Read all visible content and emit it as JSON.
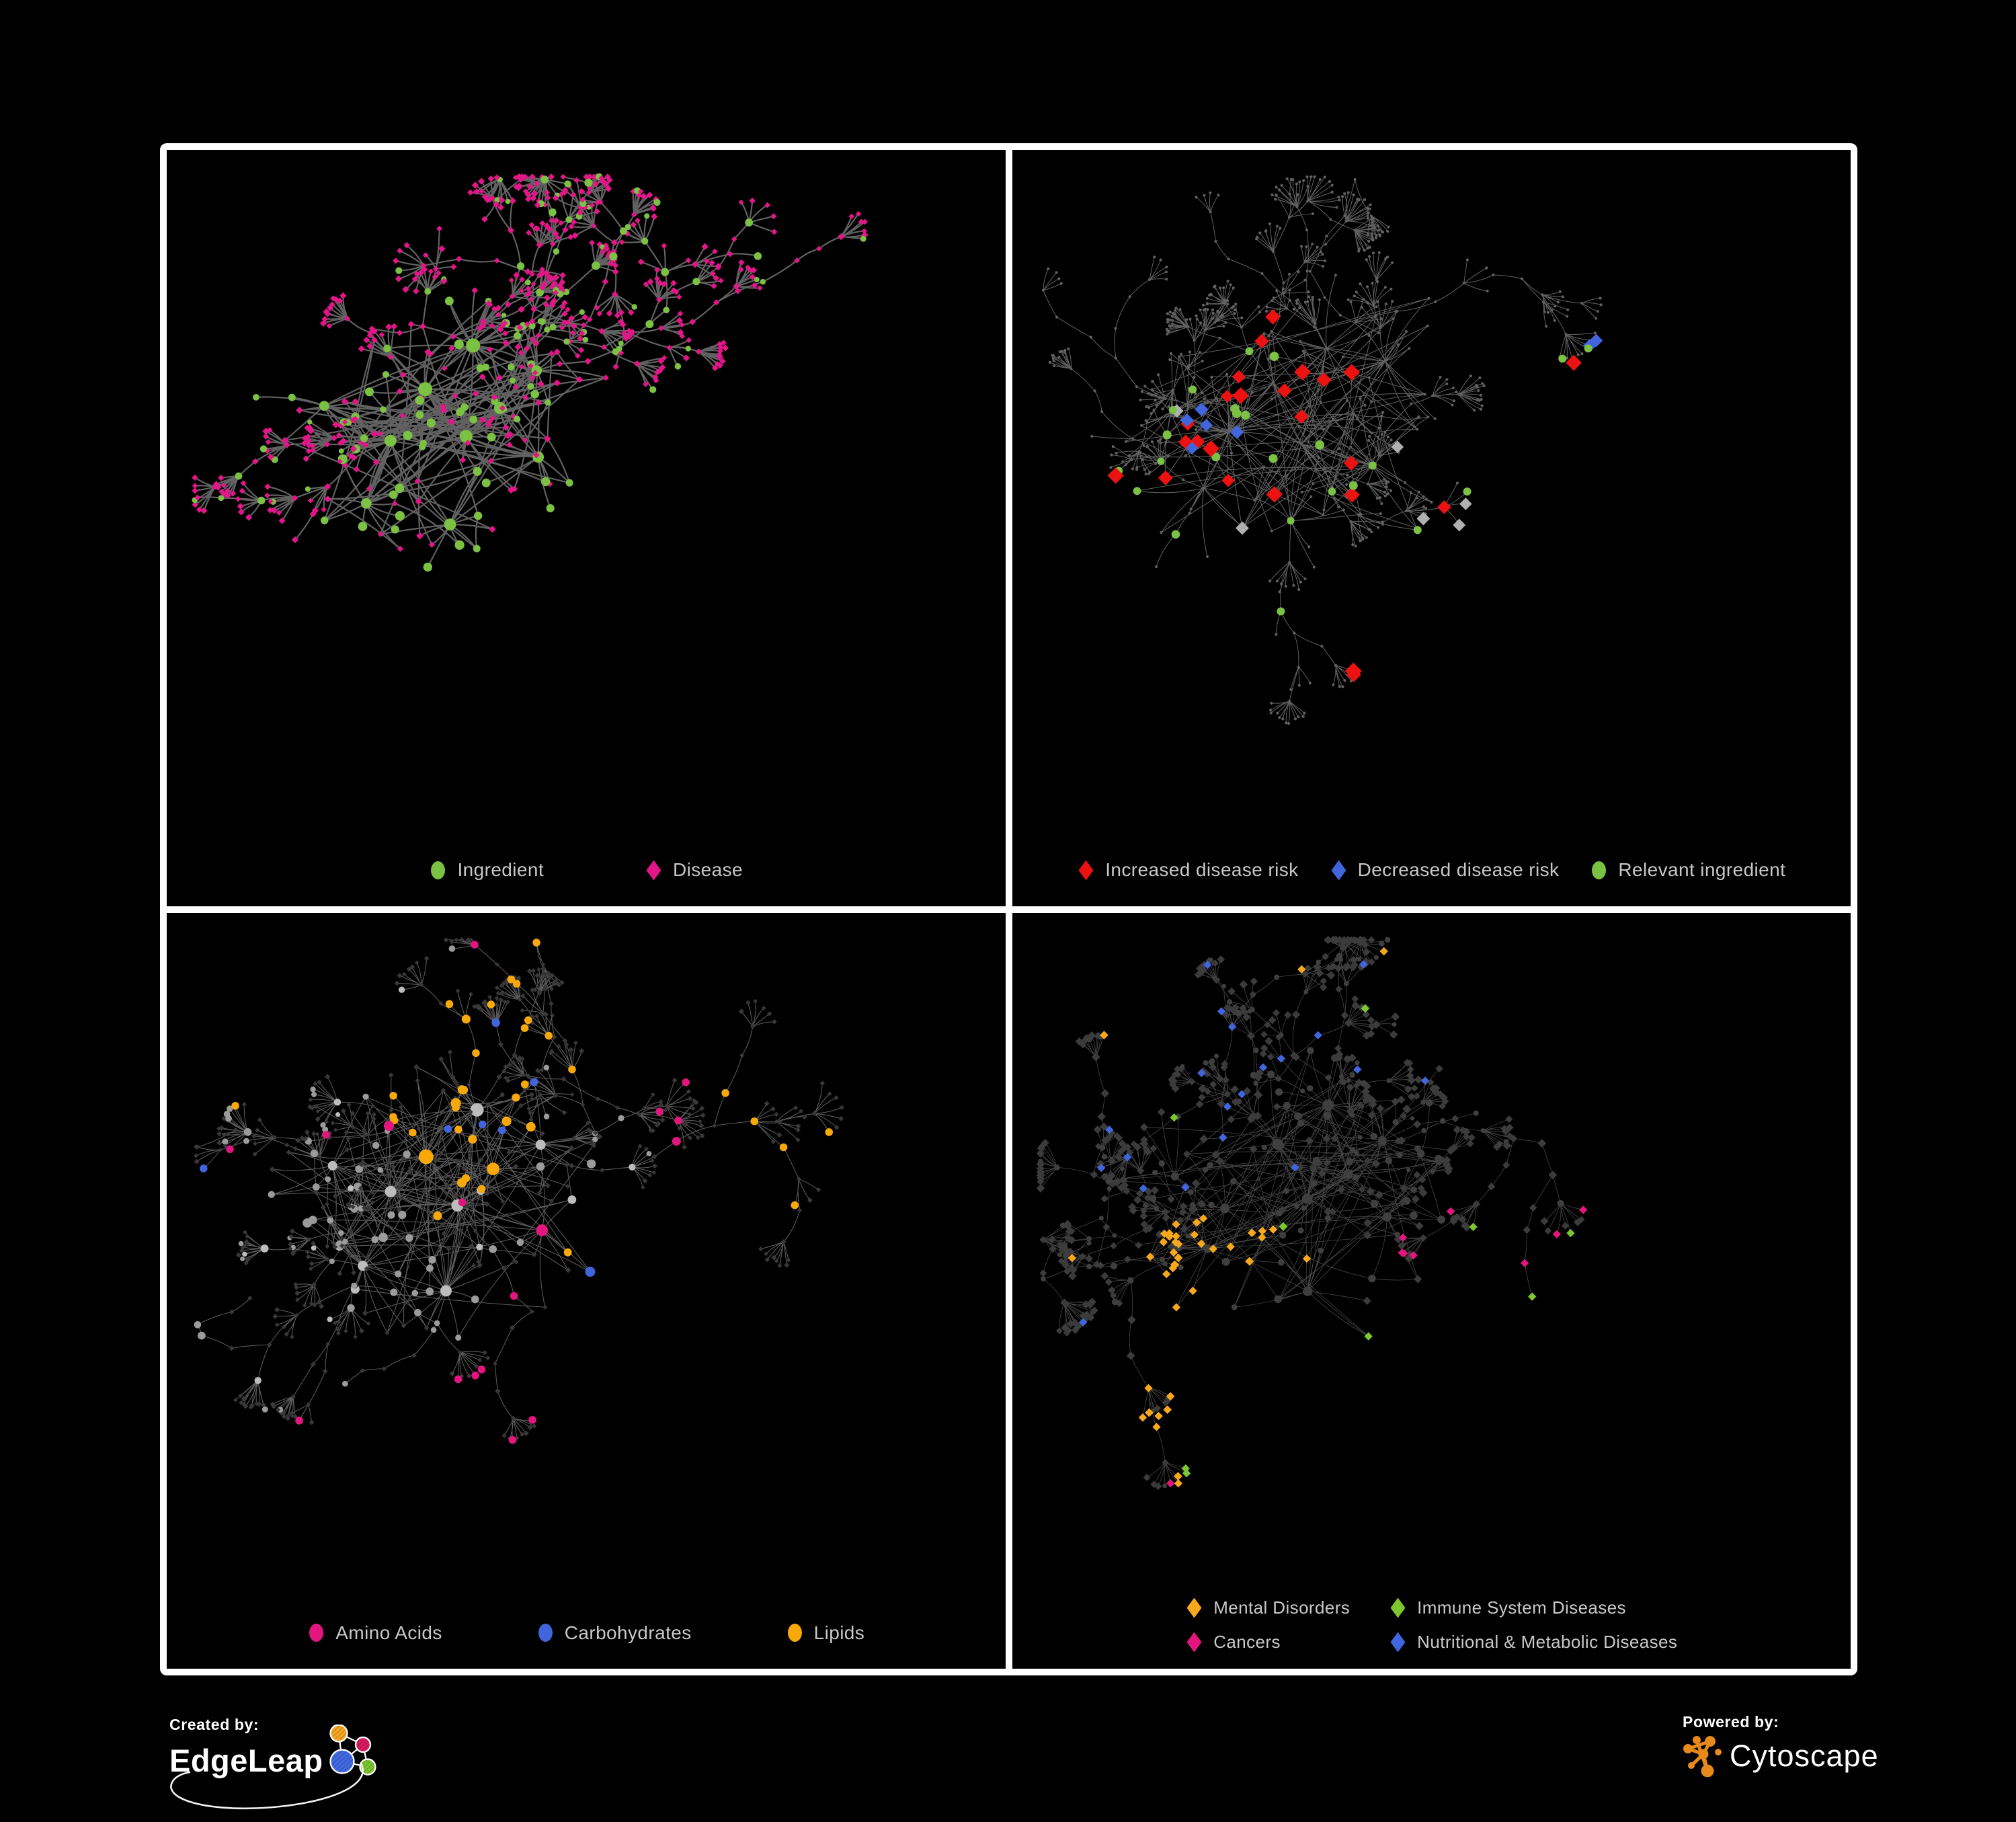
{
  "figure": {
    "background": "#000000",
    "frame_color": "#ffffff",
    "legend_text_color": "#C8C8C8"
  },
  "panels": [
    {
      "id": "ingredient-disease",
      "legend": [
        {
          "label": "Ingredient",
          "shape": "circle",
          "color": "#7BC143"
        },
        {
          "label": "Disease",
          "shape": "diamond",
          "color": "#E31689"
        }
      ],
      "style": {
        "edge_color": "#616161",
        "edge_width": 2.2,
        "edge_opacity": 1,
        "circle_color": "#7BC143",
        "diamond_color": "#E31689"
      }
    },
    {
      "id": "disease-risk",
      "legend": [
        {
          "label": "Increased disease risk",
          "shape": "diamond",
          "color": "#EC1212"
        },
        {
          "label": "Decreased disease risk",
          "shape": "diamond",
          "color": "#4165DC"
        },
        {
          "label": "Relevant ingredient",
          "shape": "circle",
          "color": "#7BC143"
        }
      ],
      "style": {
        "edge_color": "#6C6C6C",
        "edge_width": 1.0,
        "edge_opacity": 0.9,
        "base_node_color": "#616161",
        "silver_color": "#B0B0B0"
      }
    },
    {
      "id": "nutrient-classes",
      "legend": [
        {
          "label": "Amino Acids",
          "shape": "circle",
          "color": "#E31680"
        },
        {
          "label": "Carbohydrates",
          "shape": "circle",
          "color": "#4165DC"
        },
        {
          "label": "Lipids",
          "shape": "circle",
          "color": "#F7A80B"
        }
      ],
      "style": {
        "edge_color": "#6C6C6C",
        "edge_width": 1.05,
        "edge_opacity": 0.85,
        "circle_color": "#9B9B9B",
        "alt_circle_color": "#BDBDBD",
        "diamond_color": "#383838"
      }
    },
    {
      "id": "disease-classes",
      "legend": [
        {
          "label": "Mental Disorders",
          "shape": "diamond",
          "color": "#F7A81C"
        },
        {
          "label": "Immune System Diseases",
          "shape": "diamond",
          "color": "#7CC62F"
        },
        {
          "label": "Cancers",
          "shape": "diamond",
          "color": "#E31680"
        },
        {
          "label": "Nutritional & Metabolic Diseases",
          "shape": "diamond",
          "color": "#4165DC"
        }
      ],
      "style": {
        "edge_color": "#8C8C8C",
        "edge_width": 0.8,
        "edge_opacity": 0.5,
        "circle_color": "#3F3F3F",
        "diamond_color": "#3B3B3B"
      }
    }
  ],
  "footer": {
    "created_by": {
      "label": "Created by:",
      "brand": "EdgeLeap",
      "brand_colors": [
        "#F5A623",
        "#D81B60",
        "#4169E1",
        "#7CC62F"
      ]
    },
    "powered_by": {
      "label": "Powered by:",
      "brand": "Cytoscape",
      "accent": "#E8891B"
    }
  }
}
